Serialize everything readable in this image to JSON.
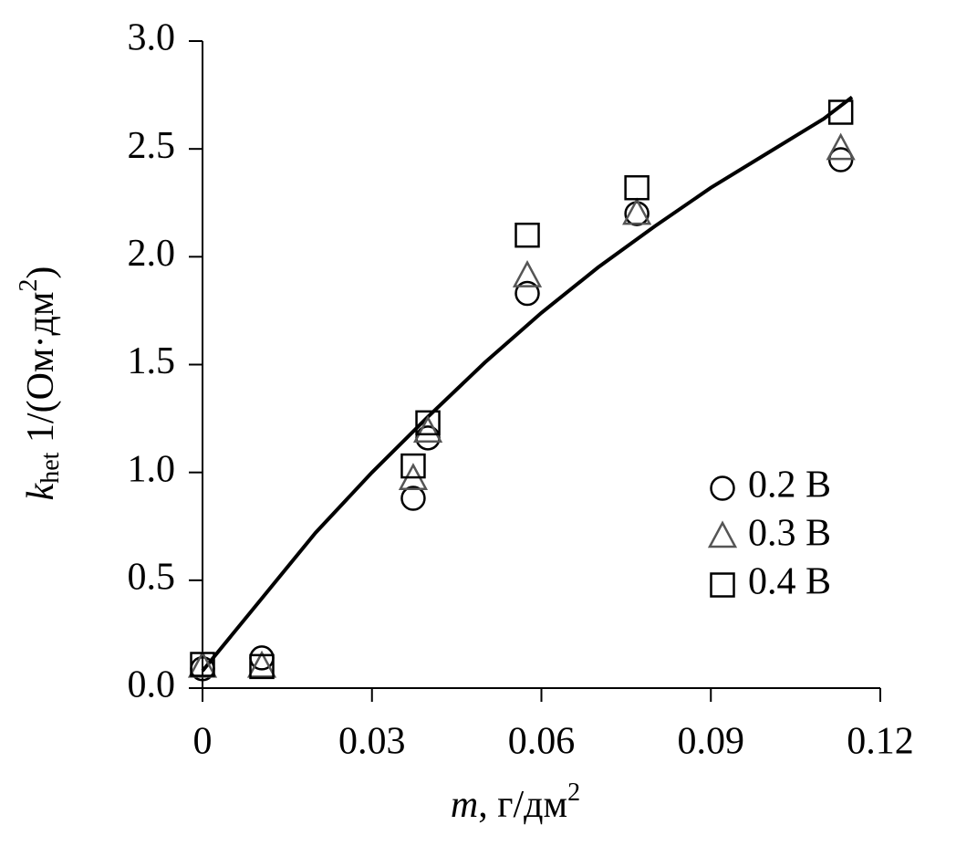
{
  "chart_data": {
    "type": "scatter",
    "xlabel": [
      "m",
      ", г/дм",
      "2"
    ],
    "ylabel": [
      "k",
      "het",
      " 1/(Ом·дм",
      "2",
      ")"
    ],
    "x": [
      0,
      0.0105,
      0.0373,
      0.0399,
      0.0575,
      0.0769,
      0.113
    ],
    "series": [
      {
        "name": "0.2 В",
        "marker": "circle",
        "color": "#000000",
        "values": [
          0.09,
          0.14,
          0.88,
          1.16,
          1.83,
          2.2,
          2.45
        ]
      },
      {
        "name": "0.3 В",
        "marker": "triangle",
        "color": "#555555",
        "values": [
          0.1,
          0.1,
          0.97,
          1.19,
          1.91,
          2.2,
          2.5
        ]
      },
      {
        "name": "0.4 В",
        "marker": "square",
        "color": "#000000",
        "values": [
          0.11,
          0.1,
          1.03,
          1.23,
          2.1,
          2.32,
          2.67
        ]
      }
    ],
    "fit": {
      "color": "#000000",
      "x": [
        0,
        0.01,
        0.02,
        0.03,
        0.04,
        0.05,
        0.06,
        0.07,
        0.08,
        0.09,
        0.1,
        0.11,
        0.115
      ],
      "values": [
        0.08,
        0.4,
        0.72,
        1.0,
        1.26,
        1.51,
        1.74,
        1.95,
        2.14,
        2.32,
        2.48,
        2.64,
        2.74
      ]
    },
    "xlim": [
      0,
      0.12
    ],
    "xticks": [
      0,
      0.03,
      0.06,
      0.09,
      0.12
    ],
    "ylim": [
      0,
      3
    ],
    "yticks": [
      {
        "value": 0,
        "label": "0.0"
      },
      0.5,
      {
        "value": 1,
        "label": "1.0"
      },
      1.5,
      {
        "value": 2,
        "label": "2.0"
      },
      2.5,
      {
        "value": 3,
        "label": "3.0"
      }
    ],
    "legend": "right"
  }
}
